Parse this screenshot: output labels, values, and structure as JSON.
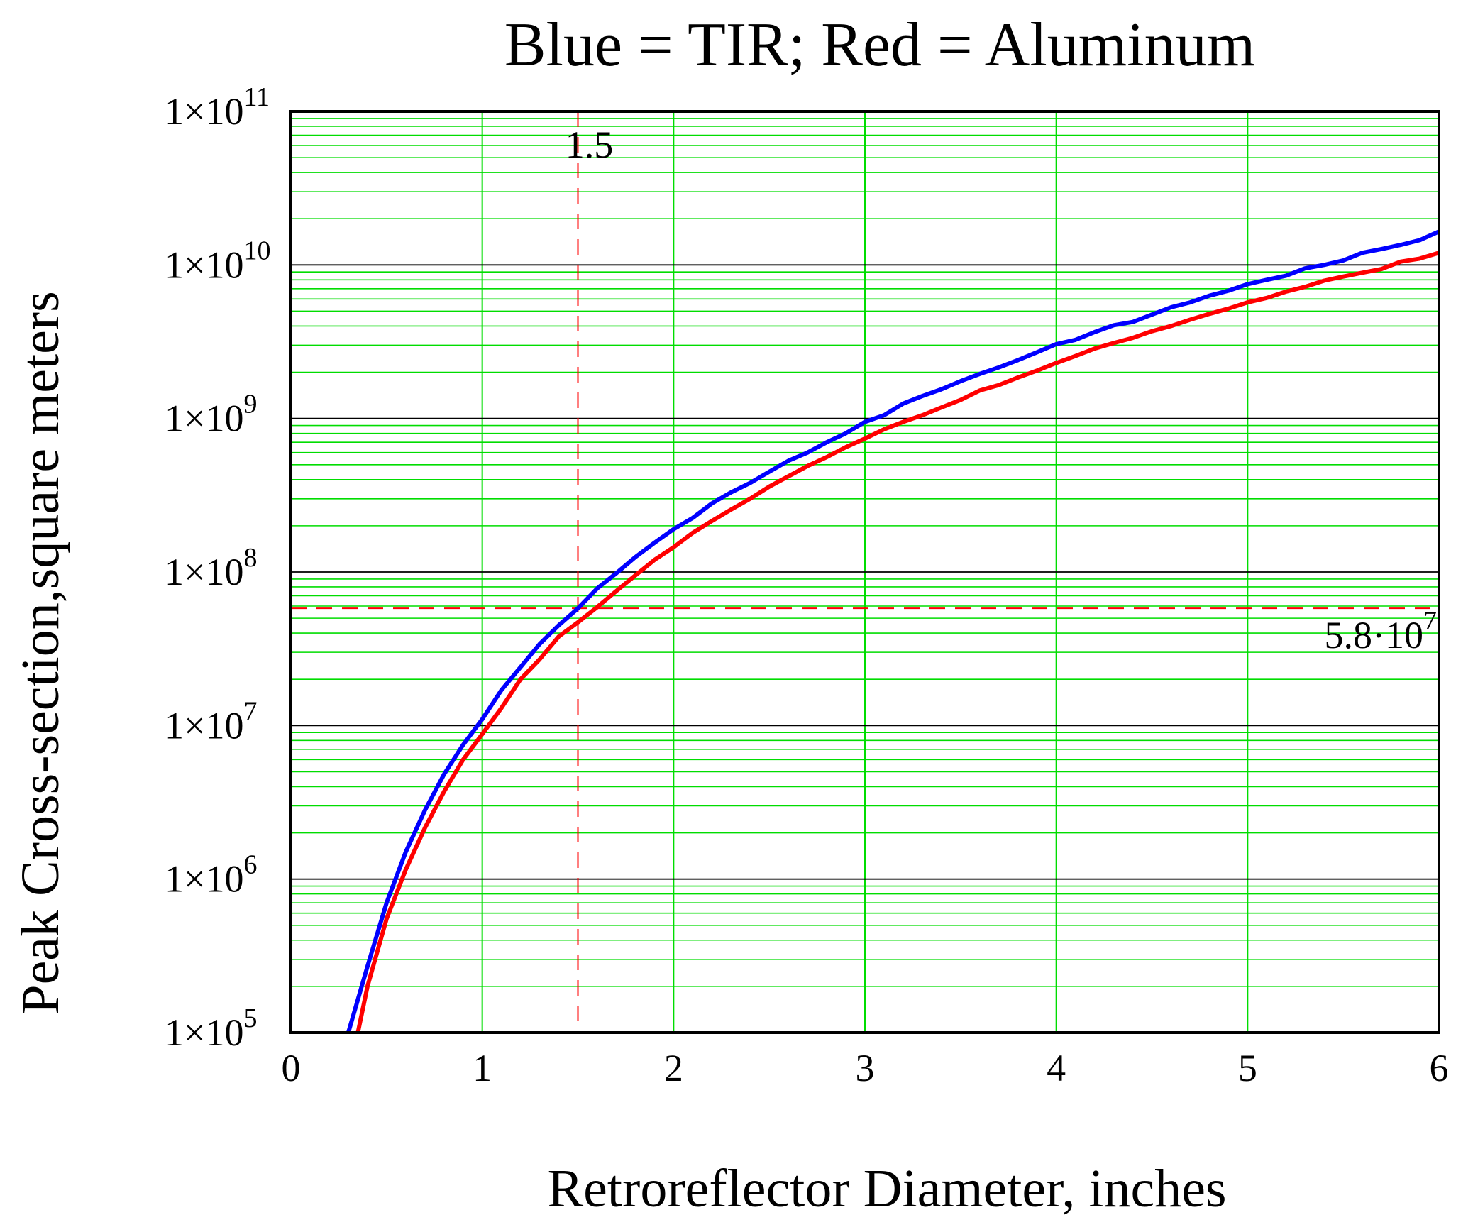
{
  "chart_data": {
    "type": "line",
    "title": "Blue = TIR; Red = Aluminum",
    "xlabel": "Retroreflector Diameter, inches",
    "ylabel": "Peak Cross-section,square meters",
    "xlim": [
      0,
      6
    ],
    "ylim": [
      100000,
      100000000000
    ],
    "yscale": "log",
    "grid": true,
    "x_ticks": [
      "0",
      "1",
      "2",
      "3",
      "4",
      "5",
      "6"
    ],
    "y_ticks": [
      {
        "value": 100000,
        "base": "1×10",
        "exp": "5"
      },
      {
        "value": 1000000,
        "base": "1×10",
        "exp": "6"
      },
      {
        "value": 10000000,
        "base": "1×10",
        "exp": "7"
      },
      {
        "value": 100000000,
        "base": "1×10",
        "exp": "8"
      },
      {
        "value": 1000000000,
        "base": "1×10",
        "exp": "9"
      },
      {
        "value": 10000000000,
        "base": "1×10",
        "exp": "10"
      },
      {
        "value": 100000000000,
        "base": "1×10",
        "exp": "11"
      }
    ],
    "series": [
      {
        "color": "#0000ff",
        "x": [
          0.3,
          0.4,
          0.5,
          0.6,
          0.7,
          0.8,
          0.9,
          1.0,
          1.1,
          1.2,
          1.3,
          1.4,
          1.5,
          1.6,
          1.7,
          1.8,
          1.9,
          2.0,
          2.1,
          2.2,
          2.3,
          2.4,
          2.5,
          2.6,
          2.7,
          2.8,
          2.9,
          3.0,
          3.1,
          3.2,
          3.3,
          3.4,
          3.5,
          3.6,
          3.7,
          3.8,
          3.9,
          4.0,
          4.1,
          4.2,
          4.3,
          4.4,
          4.5,
          4.6,
          4.7,
          4.8,
          4.9,
          5.0,
          5.1,
          5.2,
          5.3,
          5.4,
          5.5,
          5.6,
          5.7,
          5.8,
          5.9,
          6.0
        ],
        "values": [
          100000,
          270000,
          700000,
          1500000,
          2800000,
          4800000,
          7500000,
          11000000,
          17000000,
          24000000,
          34000000,
          45000000,
          58000000,
          78000000,
          98000000,
          125000000,
          155000000,
          190000000,
          225000000,
          280000000,
          330000000,
          380000000,
          450000000,
          530000000,
          600000000,
          700000000,
          800000000,
          950000000,
          1050000000,
          1250000000,
          1400000000,
          1550000000,
          1750000000,
          1950000000,
          2150000000,
          2400000000,
          2700000000,
          3050000000,
          3250000000,
          3650000000,
          4050000000,
          4250000000,
          4750000000,
          5300000000,
          5700000000,
          6300000000,
          6800000000,
          7500000000,
          8000000000,
          8500000000,
          9500000000,
          10000000000,
          10700000000,
          12000000000,
          12700000000,
          13500000000,
          14500000000,
          16500000000
        ]
      },
      {
        "color": "#ff0000",
        "x": [
          0.35,
          0.4,
          0.5,
          0.6,
          0.7,
          0.8,
          0.9,
          1.0,
          1.1,
          1.2,
          1.3,
          1.4,
          1.5,
          1.6,
          1.7,
          1.8,
          1.9,
          2.0,
          2.1,
          2.2,
          2.3,
          2.4,
          2.5,
          2.6,
          2.7,
          2.8,
          2.9,
          3.0,
          3.1,
          3.2,
          3.3,
          3.4,
          3.5,
          3.6,
          3.7,
          3.8,
          3.9,
          4.0,
          4.1,
          4.2,
          4.3,
          4.4,
          4.5,
          4.6,
          4.7,
          4.8,
          4.9,
          5.0,
          5.1,
          5.2,
          5.3,
          5.4,
          5.5,
          5.6,
          5.7,
          5.8,
          5.9,
          6.0
        ],
        "values": [
          100000,
          200000,
          550000,
          1150000,
          2150000,
          3700000,
          6000000,
          8800000,
          13000000,
          20000000,
          27000000,
          38000000,
          47000000,
          59000000,
          75000000,
          95000000,
          120000000,
          145000000,
          180000000,
          215000000,
          255000000,
          300000000,
          360000000,
          420000000,
          490000000,
          560000000,
          650000000,
          740000000,
          850000000,
          950000000,
          1050000000,
          1180000000,
          1320000000,
          1520000000,
          1650000000,
          1850000000,
          2050000000,
          2300000000,
          2550000000,
          2850000000,
          3100000000,
          3350000000,
          3700000000,
          4000000000,
          4400000000,
          4800000000,
          5200000000,
          5700000000,
          6100000000,
          6700000000,
          7200000000,
          7900000000,
          8400000000,
          8900000000,
          9400000000,
          10500000000,
          11000000000,
          12000000000
        ]
      }
    ],
    "annotations": [
      {
        "kind": "vline",
        "x": 1.5,
        "color": "#ff0000",
        "label": "1.5"
      },
      {
        "kind": "hline",
        "y": 58000000,
        "color": "#ff0000",
        "label_base": "5.8·10",
        "label_exp": "7"
      }
    ]
  }
}
